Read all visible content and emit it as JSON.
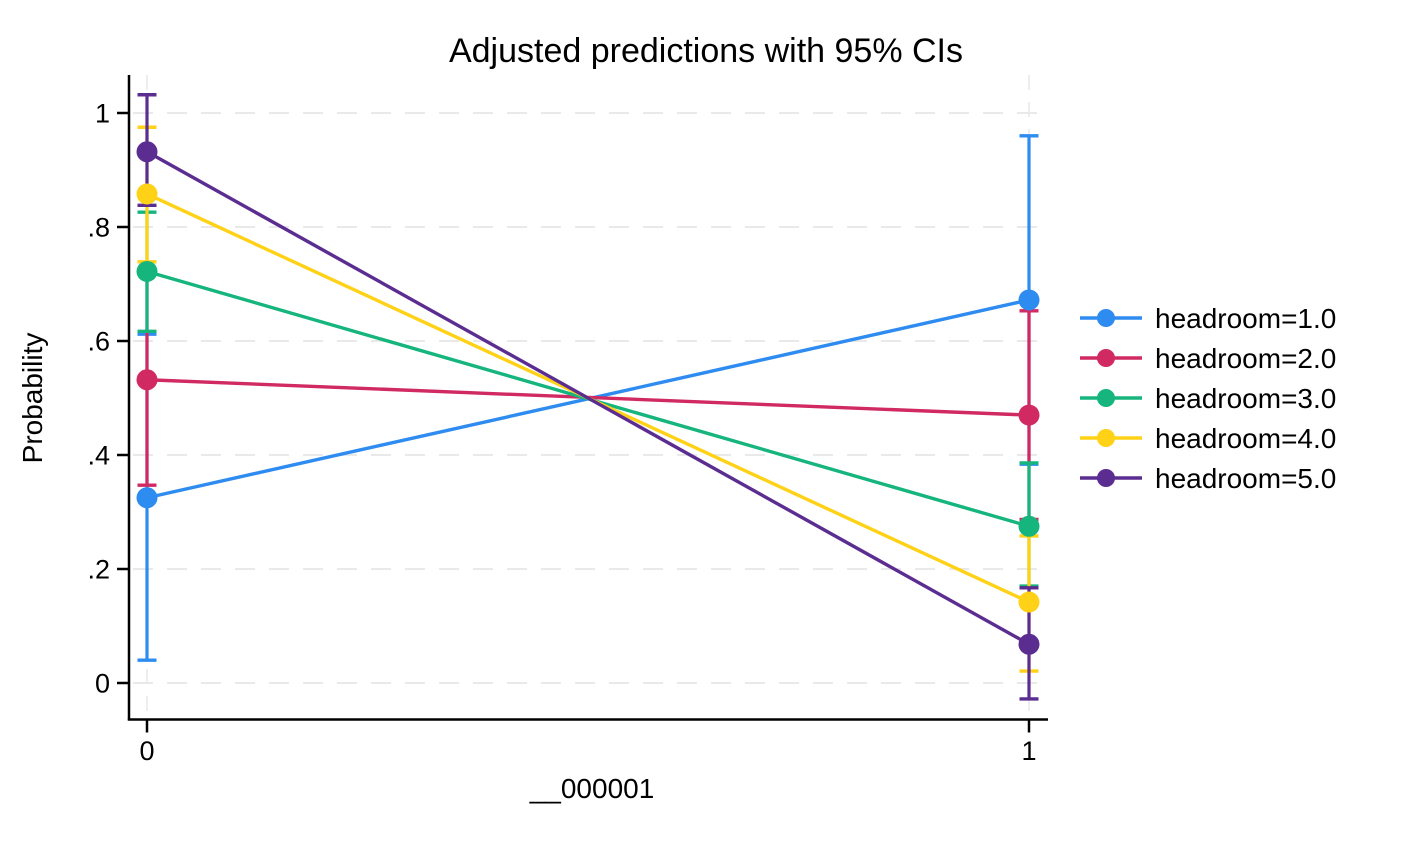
{
  "chart_data": {
    "type": "line",
    "title": "Adjusted predictions with 95% CIs",
    "xlabel": "__000001",
    "ylabel": "Probability",
    "x": [
      0,
      1
    ],
    "xtick_labels": [
      "0",
      "1"
    ],
    "yticks": [
      0,
      0.2,
      0.4,
      0.6,
      0.8,
      1
    ],
    "ytick_labels": [
      "0",
      ".2",
      ".4",
      ".6",
      ".8",
      "1"
    ],
    "ylim": [
      -0.07,
      1.07
    ],
    "grid": "dashed-light-gray",
    "legend_position": "right-middle",
    "error_bars": "95% confidence intervals with caps",
    "axis_color": "#000000",
    "gridline_color": "#e9e9e9",
    "background_color": "#ffffff",
    "series": [
      {
        "name": "headroom=1.0",
        "color": "#2e8bf0",
        "values": [
          0.325,
          0.672
        ],
        "ci_low": [
          0.04,
          0.384
        ],
        "ci_high": [
          0.612,
          0.96
        ]
      },
      {
        "name": "headroom=2.0",
        "color": "#d12a63",
        "values": [
          0.532,
          0.47
        ],
        "ci_low": [
          0.347,
          0.287
        ],
        "ci_high": [
          0.717,
          0.653
        ]
      },
      {
        "name": "headroom=3.0",
        "color": "#15b57d",
        "values": [
          0.722,
          0.275
        ],
        "ci_low": [
          0.617,
          0.17
        ],
        "ci_high": [
          0.826,
          0.386
        ]
      },
      {
        "name": "headroom=4.0",
        "color": "#ffd117",
        "values": [
          0.858,
          0.142
        ],
        "ci_low": [
          0.739,
          0.021
        ],
        "ci_high": [
          0.975,
          0.258
        ]
      },
      {
        "name": "headroom=5.0",
        "color": "#5c2d91",
        "values": [
          0.932,
          0.068
        ],
        "ci_low": [
          0.838,
          -0.028
        ],
        "ci_high": [
          1.032,
          0.167
        ]
      }
    ]
  }
}
